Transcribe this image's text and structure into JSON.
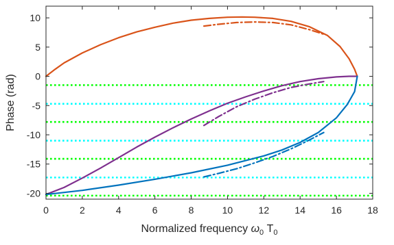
{
  "chart_data": {
    "type": "line",
    "xlabel": "Normalized frequency ",
    "xlabel_symbol": "ω",
    "xlabel_symbol_sub": "0",
    "xlabel_var": " T",
    "xlabel_var_sub": "0",
    "ylabel": "Phase (rad)",
    "xlim": [
      0,
      18
    ],
    "ylim": [
      -21,
      12
    ],
    "xticks": [
      0,
      2,
      4,
      6,
      8,
      10,
      12,
      14,
      16,
      18
    ],
    "yticks": [
      10,
      5,
      0,
      -5,
      -10,
      -15,
      -20
    ],
    "grid": false,
    "box": true,
    "series": [
      {
        "color": "#D95319",
        "style": "solid",
        "points": [
          [
            0,
            0
          ],
          [
            0.5,
            1.2
          ],
          [
            1,
            2.3
          ],
          [
            2,
            4.0
          ],
          [
            3,
            5.4
          ],
          [
            4,
            6.6
          ],
          [
            5,
            7.6
          ],
          [
            6,
            8.4
          ],
          [
            7,
            9.1
          ],
          [
            8,
            9.6
          ],
          [
            9,
            9.9
          ],
          [
            10,
            10.1
          ],
          [
            10.8,
            10.15
          ],
          [
            11.5,
            10.1
          ],
          [
            12.5,
            9.9
          ],
          [
            13.5,
            9.4
          ],
          [
            14.5,
            8.5
          ],
          [
            15.5,
            7.0
          ],
          [
            16.2,
            5.1
          ],
          [
            16.7,
            3.0
          ],
          [
            17.0,
            1.2
          ],
          [
            17.15,
            0
          ]
        ]
      },
      {
        "color": "#D95319",
        "style": "dashdot",
        "points": [
          [
            8.7,
            8.6
          ],
          [
            9.5,
            8.9
          ],
          [
            10.5,
            9.2
          ],
          [
            11.5,
            9.3
          ],
          [
            12.5,
            9.2
          ],
          [
            13.5,
            8.8
          ],
          [
            14.5,
            8.0
          ],
          [
            15.3,
            7.2
          ]
        ]
      },
      {
        "color": "#7E2F8E",
        "style": "solid",
        "points": [
          [
            0,
            -20.2
          ],
          [
            1,
            -19.0
          ],
          [
            2,
            -17.4
          ],
          [
            3,
            -15.7
          ],
          [
            4,
            -13.9
          ],
          [
            5,
            -12.1
          ],
          [
            6,
            -10.4
          ],
          [
            7,
            -8.8
          ],
          [
            8,
            -7.3
          ],
          [
            9,
            -5.9
          ],
          [
            10,
            -4.6
          ],
          [
            11,
            -3.5
          ],
          [
            12,
            -2.5
          ],
          [
            13,
            -1.6
          ],
          [
            14,
            -0.9
          ],
          [
            15,
            -0.4
          ],
          [
            16,
            -0.1
          ],
          [
            16.7,
            0
          ],
          [
            17.15,
            0
          ]
        ]
      },
      {
        "color": "#7E2F8E",
        "style": "dashdot",
        "points": [
          [
            8.7,
            -8.4
          ],
          [
            9.5,
            -6.9
          ],
          [
            10.5,
            -5.2
          ],
          [
            11.5,
            -3.9
          ],
          [
            12.5,
            -2.8
          ],
          [
            13.5,
            -1.9
          ],
          [
            14.5,
            -1.3
          ],
          [
            15.3,
            -0.9
          ]
        ]
      },
      {
        "color": "#0072BD",
        "style": "solid",
        "points": [
          [
            0,
            -20.2
          ],
          [
            2,
            -19.5
          ],
          [
            4,
            -18.6
          ],
          [
            6,
            -17.6
          ],
          [
            8,
            -16.5
          ],
          [
            10,
            -15.2
          ],
          [
            12,
            -13.6
          ],
          [
            13,
            -12.6
          ],
          [
            14,
            -11.3
          ],
          [
            15,
            -9.6
          ],
          [
            16,
            -7.1
          ],
          [
            16.6,
            -4.8
          ],
          [
            17.0,
            -2.6
          ],
          [
            17.15,
            0
          ]
        ]
      },
      {
        "color": "#0072BD",
        "style": "dashdot",
        "points": [
          [
            8.7,
            -17.2
          ],
          [
            9.5,
            -16.6
          ],
          [
            10.5,
            -15.8
          ],
          [
            11.5,
            -14.8
          ],
          [
            12.5,
            -13.7
          ],
          [
            13.5,
            -12.4
          ],
          [
            14.5,
            -10.9
          ],
          [
            15.3,
            -9.6
          ]
        ]
      }
    ],
    "hlines": [
      {
        "y": -1.5,
        "color": "#00FF00",
        "style": "dotted"
      },
      {
        "y": -4.7,
        "color": "#00FFFF",
        "style": "dotted"
      },
      {
        "y": -7.8,
        "color": "#00FF00",
        "style": "dotted"
      },
      {
        "y": -11.0,
        "color": "#00FFFF",
        "style": "dotted"
      },
      {
        "y": -14.1,
        "color": "#00FF00",
        "style": "dotted"
      },
      {
        "y": -17.3,
        "color": "#00FFFF",
        "style": "dotted"
      },
      {
        "y": -20.4,
        "color": "#00FF00",
        "style": "dotted"
      }
    ]
  }
}
